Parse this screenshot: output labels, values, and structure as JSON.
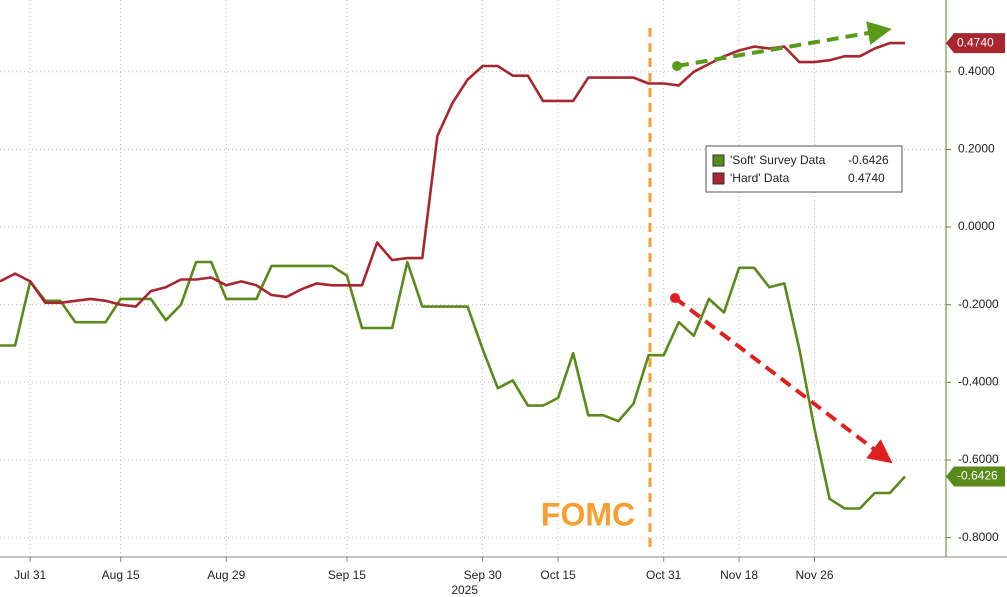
{
  "chart_data": {
    "type": "line",
    "categories": [
      null,
      null,
      "Jul 31",
      null,
      null,
      null,
      null,
      null,
      "Aug 15",
      null,
      null,
      null,
      null,
      null,
      null,
      "Aug 29",
      null,
      null,
      null,
      null,
      null,
      null,
      null,
      "Sep 15",
      null,
      null,
      null,
      null,
      null,
      null,
      null,
      null,
      "Sep 30",
      null,
      null,
      null,
      null,
      "Oct 15",
      null,
      null,
      null,
      null,
      null,
      null,
      "Oct 31",
      null,
      null,
      null,
      null,
      "Nov 18",
      null,
      null,
      null,
      null,
      "Nov 26",
      null,
      null,
      null,
      null,
      null,
      null
    ],
    "year_label": "2025",
    "series": [
      {
        "name": "'Soft' Survey Data",
        "color": "#5a8a1a",
        "last_value_label": "-0.6426",
        "values": [
          -0.305,
          -0.305,
          -0.14,
          -0.19,
          -0.19,
          -0.245,
          -0.245,
          -0.245,
          -0.185,
          -0.185,
          -0.185,
          -0.24,
          -0.2,
          -0.09,
          -0.09,
          -0.185,
          -0.185,
          -0.185,
          -0.1,
          -0.1,
          -0.1,
          -0.1,
          -0.1,
          -0.125,
          -0.26,
          -0.26,
          -0.26,
          -0.09,
          -0.205,
          -0.205,
          -0.205,
          -0.205,
          -0.315,
          -0.415,
          -0.395,
          -0.46,
          -0.46,
          -0.44,
          -0.325,
          -0.485,
          -0.485,
          -0.5,
          -0.455,
          -0.33,
          -0.33,
          -0.245,
          -0.28,
          -0.185,
          -0.22,
          -0.105,
          -0.105,
          -0.155,
          -0.145,
          -0.315,
          -0.52,
          -0.7,
          -0.725,
          -0.725,
          -0.685,
          -0.685,
          -0.6426
        ]
      },
      {
        "name": "'Hard' Data",
        "color": "#a8262f",
        "last_value_label": "0.4740",
        "values": [
          -0.14,
          -0.12,
          -0.14,
          -0.195,
          -0.195,
          -0.19,
          -0.185,
          -0.19,
          -0.2,
          -0.205,
          -0.165,
          -0.155,
          -0.135,
          -0.135,
          -0.13,
          -0.15,
          -0.14,
          -0.15,
          -0.175,
          -0.18,
          -0.16,
          -0.145,
          -0.15,
          -0.15,
          -0.15,
          -0.04,
          -0.085,
          -0.08,
          -0.08,
          0.235,
          0.32,
          0.38,
          0.415,
          0.415,
          0.39,
          0.39,
          0.325,
          0.325,
          0.325,
          0.385,
          0.385,
          0.385,
          0.385,
          0.37,
          0.37,
          0.365,
          0.4,
          0.42,
          0.44,
          0.455,
          0.465,
          0.46,
          0.465,
          0.425,
          0.425,
          0.43,
          0.44,
          0.44,
          0.46,
          0.474,
          0.474
        ]
      }
    ],
    "ylim": [
      -0.85,
      0.585
    ],
    "yticks": [
      {
        "value": 0.4,
        "label": "0.4000"
      },
      {
        "value": 0.2,
        "label": "0.2000"
      },
      {
        "value": 0,
        "label": "0.0000"
      },
      {
        "value": -0.2,
        "label": "-0.2000"
      },
      {
        "value": -0.4,
        "label": "-0.4000"
      },
      {
        "value": -0.6,
        "label": "-0.6000"
      },
      {
        "value": -0.8,
        "label": "-0.8000"
      }
    ],
    "grid": true,
    "annotation": "FOMC"
  }
}
